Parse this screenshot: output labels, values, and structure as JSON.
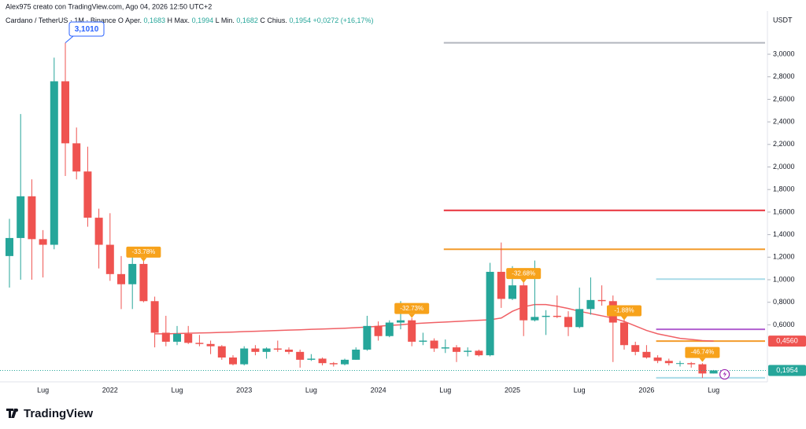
{
  "chart_data": {
    "type": "candlestick",
    "header": "Alex975 creato con TradingView.com, Ago 04, 2026 12:50 UTC+2",
    "legend": {
      "symbol": "Cardano / TetherUS · 1M · Binance",
      "items": [
        {
          "key": "O",
          "name": "Aper.",
          "value": "0,1683"
        },
        {
          "key": "H",
          "name": "Max.",
          "value": "0,1994"
        },
        {
          "key": "L",
          "name": "Min.",
          "value": "0,1682"
        },
        {
          "key": "C",
          "name": "Chius.",
          "value": "0,1954"
        }
      ],
      "change": "+0,0272 (+16,17%)"
    },
    "unit": "USDT",
    "categories": [
      null,
      null,
      null,
      "Lug",
      null,
      null,
      null,
      null,
      null,
      "2022",
      null,
      null,
      null,
      null,
      null,
      "Lug",
      null,
      null,
      null,
      null,
      null,
      "2023",
      null,
      null,
      null,
      null,
      null,
      "Lug",
      null,
      null,
      null,
      null,
      null,
      "2024",
      null,
      null,
      null,
      null,
      null,
      "Lug",
      null,
      null,
      null,
      null,
      null,
      "2025",
      null,
      null,
      null,
      null,
      null,
      "Lug",
      null,
      null,
      null,
      null,
      null,
      "2026",
      null,
      null,
      null,
      null,
      null,
      "Lug"
    ],
    "open": [
      1.21,
      1.37,
      1.74,
      1.36,
      1.31,
      2.76,
      2.21,
      1.96,
      1.55,
      1.31,
      1.05,
      0.96,
      1.14,
      0.81,
      0.53,
      0.45,
      0.52,
      0.44,
      0.43,
      0.41,
      0.31,
      0.25,
      0.39,
      0.36,
      0.39,
      0.38,
      0.36,
      0.29,
      0.3,
      0.26,
      0.25,
      0.29,
      0.38,
      0.59,
      0.5,
      0.62,
      0.64,
      0.45,
      0.46,
      0.39,
      0.4,
      0.36,
      0.37,
      0.33,
      1.07,
      0.83,
      0.95,
      0.64,
      0.67,
      0.68,
      0.67,
      0.58,
      0.74,
      0.82,
      0.81,
      0.62,
      0.42,
      0.36,
      0.31,
      0.28,
      0.26,
      0.26,
      0.25,
      0.1683
    ],
    "high": [
      1.54,
      2.47,
      1.89,
      1.44,
      2.97,
      3.101,
      2.35,
      2.18,
      1.63,
      1.59,
      1.21,
      1.24,
      1.23,
      0.85,
      0.68,
      0.59,
      0.59,
      0.51,
      0.46,
      0.42,
      0.33,
      0.41,
      0.42,
      0.4,
      0.46,
      0.4,
      0.38,
      0.34,
      0.31,
      0.27,
      0.3,
      0.4,
      0.68,
      0.63,
      0.64,
      0.81,
      0.66,
      0.53,
      0.48,
      0.47,
      0.42,
      0.4,
      0.38,
      1.15,
      1.33,
      1.12,
      0.99,
      1.17,
      0.73,
      0.86,
      0.72,
      0.93,
      1.02,
      0.95,
      0.86,
      0.67,
      0.45,
      0.42,
      0.33,
      0.3,
      0.28,
      0.27,
      0.26,
      0.1994
    ],
    "low": [
      0.93,
      1.0,
      1.0,
      1.02,
      1.27,
      1.92,
      1.89,
      1.47,
      1.1,
      0.99,
      0.74,
      0.74,
      0.8,
      0.4,
      0.41,
      0.42,
      0.43,
      0.41,
      0.34,
      0.29,
      0.24,
      0.24,
      0.33,
      0.3,
      0.36,
      0.34,
      0.22,
      0.28,
      0.24,
      0.23,
      0.24,
      0.29,
      0.37,
      0.46,
      0.49,
      0.56,
      0.41,
      0.42,
      0.36,
      0.35,
      0.27,
      0.32,
      0.32,
      0.32,
      0.75,
      0.82,
      0.5,
      0.63,
      0.51,
      0.66,
      0.5,
      0.57,
      0.69,
      0.77,
      0.27,
      0.38,
      0.33,
      0.3,
      0.26,
      0.24,
      0.23,
      0.22,
      0.13,
      0.1682
    ],
    "close": [
      1.37,
      1.74,
      1.36,
      1.31,
      2.76,
      2.21,
      1.96,
      1.55,
      1.31,
      1.05,
      0.96,
      1.14,
      0.81,
      0.53,
      0.45,
      0.52,
      0.44,
      0.43,
      0.41,
      0.31,
      0.25,
      0.39,
      0.36,
      0.39,
      0.38,
      0.36,
      0.29,
      0.3,
      0.26,
      0.25,
      0.29,
      0.38,
      0.59,
      0.5,
      0.62,
      0.64,
      0.45,
      0.46,
      0.39,
      0.4,
      0.36,
      0.37,
      0.33,
      1.07,
      0.83,
      0.95,
      0.64,
      0.67,
      0.68,
      0.67,
      0.58,
      0.74,
      0.82,
      0.81,
      0.62,
      0.42,
      0.36,
      0.31,
      0.28,
      0.26,
      0.26,
      0.25,
      0.1683,
      0.1954
    ],
    "up_color": "#26a69a",
    "down_color": "#ef5350",
    "ylim": [
      0.1,
      3.38
    ],
    "yticks": [
      {
        "value": 0.6,
        "label": "0,6000"
      },
      {
        "value": 0.8,
        "label": "0,8000"
      },
      {
        "value": 1.0,
        "label": "1,0000"
      },
      {
        "value": 1.2,
        "label": "1,2000"
      },
      {
        "value": 1.4,
        "label": "1,4000"
      },
      {
        "value": 1.6,
        "label": "1,6000"
      },
      {
        "value": 1.8,
        "label": "1,8000"
      },
      {
        "value": 2.0,
        "label": "2,0000"
      },
      {
        "value": 2.2,
        "label": "2,2000"
      },
      {
        "value": 2.4,
        "label": "2,4000"
      },
      {
        "value": 2.6,
        "label": "2,6000"
      },
      {
        "value": 2.8,
        "label": "2,8000"
      },
      {
        "value": 3.0,
        "label": "3,0000"
      }
    ],
    "grid": false,
    "ma": {
      "color": "#f06065",
      "values": [
        null,
        null,
        null,
        null,
        null,
        null,
        null,
        null,
        null,
        null,
        null,
        null,
        null,
        0.52,
        0.52,
        0.523,
        0.525,
        0.528,
        0.53,
        0.533,
        0.536,
        0.54,
        0.543,
        0.546,
        0.55,
        0.553,
        0.556,
        0.56,
        0.563,
        0.566,
        0.57,
        0.575,
        0.58,
        0.587,
        0.595,
        0.6,
        0.61,
        0.615,
        0.62,
        0.625,
        0.63,
        0.635,
        0.64,
        0.645,
        0.66,
        0.72,
        0.76,
        0.78,
        0.78,
        0.765,
        0.745,
        0.72,
        0.7,
        0.68,
        0.66,
        0.63,
        0.59,
        0.55,
        0.52,
        0.5,
        0.48,
        0.47,
        0.46,
        0.456
      ]
    },
    "hlines": [
      {
        "value": 3.101,
        "color": "#b2b5be",
        "from": 39
      },
      {
        "value": 1.615,
        "color": "#e8313b",
        "from": 39
      },
      {
        "value": 1.27,
        "color": "#f39b2b",
        "from": 39
      },
      {
        "value": 1.005,
        "color": "#a9dbe8",
        "from": 58
      },
      {
        "value": 0.56,
        "color": "#b15fd0",
        "from": 58
      },
      {
        "value": 0.456,
        "color": "#f39b2b",
        "from": 58,
        "label": "0,4560",
        "label_color": "#ef5350"
      },
      {
        "value": 0.13,
        "color": "#a9dbe8",
        "from": 58
      }
    ],
    "last_label": "0,1954",
    "ath": {
      "index": 5,
      "text": "3,1010"
    },
    "badges": [
      {
        "index": 12,
        "text": "-33.78%"
      },
      {
        "index": 36,
        "text": "-32.73%"
      },
      {
        "index": 46,
        "text": "-32.68%"
      },
      {
        "index": 55,
        "text": "-1.88%"
      },
      {
        "index": 62,
        "text": "-46.74%"
      }
    ],
    "badge_color": "#f7a21b",
    "brand": "TradingView"
  }
}
